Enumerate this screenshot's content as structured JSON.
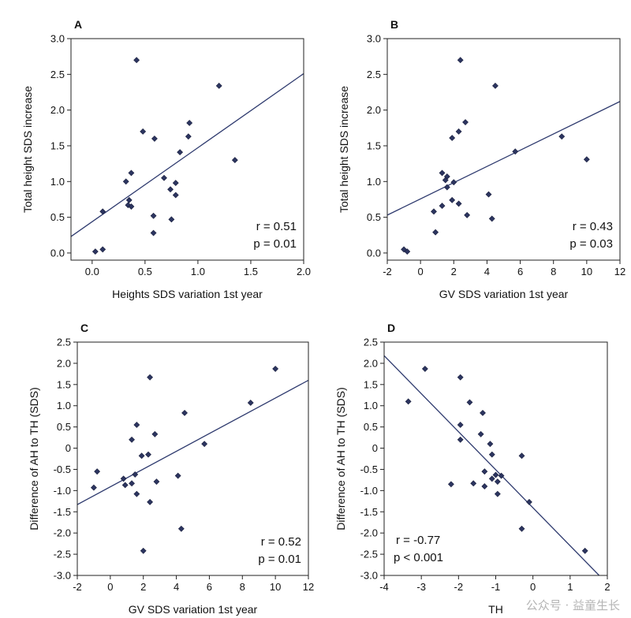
{
  "chart_data": [
    {
      "panel": "A",
      "type": "scatter",
      "xlabel": "Heights SDS variation 1st year",
      "ylabel": "Total height SDS increase",
      "xlim": [
        -0.2,
        2.0
      ],
      "ylim": [
        -0.1,
        3.0
      ],
      "xticks": [
        0.0,
        0.5,
        1.0,
        1.5,
        2.0
      ],
      "xtick_labels": [
        "0.0",
        "0.5",
        "1.0",
        "1.5",
        "2.0"
      ],
      "yticks": [
        0.0,
        0.5,
        1.0,
        1.5,
        2.0,
        2.5,
        3.0
      ],
      "ytick_labels": [
        "0.0",
        "0.5",
        "1.0",
        "1.5",
        "2.0",
        "2.5",
        "3.0"
      ],
      "points": [
        [
          0.42,
          2.7
        ],
        [
          1.2,
          2.34
        ],
        [
          0.92,
          1.82
        ],
        [
          0.48,
          1.7
        ],
        [
          0.59,
          1.6
        ],
        [
          0.91,
          1.63
        ],
        [
          0.83,
          1.41
        ],
        [
          1.35,
          1.3
        ],
        [
          0.37,
          1.12
        ],
        [
          0.68,
          1.05
        ],
        [
          0.32,
          1.0
        ],
        [
          0.79,
          0.98
        ],
        [
          0.74,
          0.89
        ],
        [
          0.79,
          0.81
        ],
        [
          0.35,
          0.74
        ],
        [
          0.34,
          0.67
        ],
        [
          0.37,
          0.65
        ],
        [
          0.1,
          0.58
        ],
        [
          0.58,
          0.52
        ],
        [
          0.75,
          0.47
        ],
        [
          0.58,
          0.28
        ],
        [
          0.1,
          0.05
        ],
        [
          0.03,
          0.02
        ]
      ],
      "fit_line": [
        [
          -0.2,
          0.23
        ],
        [
          2.0,
          2.51
        ]
      ],
      "annotations": [
        "r = 0.51",
        "p = 0.01"
      ]
    },
    {
      "panel": "B",
      "type": "scatter",
      "xlabel": "GV SDS variation 1st year",
      "ylabel": "Total height SDS increase",
      "xlim": [
        -2,
        12
      ],
      "ylim": [
        -0.1,
        3.0
      ],
      "xticks": [
        -2,
        0,
        2,
        4,
        6,
        8,
        10,
        12
      ],
      "xtick_labels": [
        "-2",
        "0",
        "2",
        "4",
        "6",
        "8",
        "10",
        "12"
      ],
      "yticks": [
        0.0,
        0.5,
        1.0,
        1.5,
        2.0,
        2.5,
        3.0
      ],
      "ytick_labels": [
        "0.0",
        "0.5",
        "1.0",
        "1.5",
        "2.0",
        "2.5",
        "3.0"
      ],
      "points": [
        [
          2.4,
          2.7
        ],
        [
          4.5,
          2.34
        ],
        [
          2.7,
          1.83
        ],
        [
          2.3,
          1.7
        ],
        [
          1.9,
          1.61
        ],
        [
          8.5,
          1.63
        ],
        [
          5.7,
          1.42
        ],
        [
          10.0,
          1.31
        ],
        [
          1.3,
          1.12
        ],
        [
          1.6,
          1.07
        ],
        [
          1.5,
          1.02
        ],
        [
          2.0,
          0.99
        ],
        [
          1.6,
          0.92
        ],
        [
          4.1,
          0.82
        ],
        [
          1.9,
          0.74
        ],
        [
          2.3,
          0.69
        ],
        [
          1.3,
          0.66
        ],
        [
          0.8,
          0.58
        ],
        [
          2.8,
          0.53
        ],
        [
          4.3,
          0.48
        ],
        [
          0.9,
          0.29
        ],
        [
          -1.0,
          0.05
        ],
        [
          -0.8,
          0.02
        ]
      ],
      "fit_line": [
        [
          -2,
          0.53
        ],
        [
          12,
          2.12
        ]
      ],
      "annotations": [
        "r = 0.43",
        "p = 0.03"
      ]
    },
    {
      "panel": "C",
      "type": "scatter",
      "xlabel": "GV SDS variation 1st year",
      "ylabel": "Difference of AH to TH (SDS)",
      "xlim": [
        -2,
        12
      ],
      "ylim": [
        -3.0,
        2.5
      ],
      "xticks": [
        -2,
        0,
        2,
        4,
        6,
        8,
        10,
        12
      ],
      "xtick_labels": [
        "-2",
        "0",
        "2",
        "4",
        "6",
        "8",
        "10",
        "12"
      ],
      "yticks": [
        -3.0,
        -2.5,
        -2.0,
        -1.5,
        -1.0,
        -0.5,
        0.0,
        0.5,
        1.0,
        1.5,
        2.0,
        2.5
      ],
      "ytick_labels": [
        "-3.0",
        "-2.5",
        "-2.0",
        "-1.5",
        "-1.0",
        "-0.5",
        "0",
        "0.5",
        "1.0",
        "1.5",
        "2.0",
        "2.5"
      ],
      "points": [
        [
          10.0,
          1.87
        ],
        [
          2.4,
          1.67
        ],
        [
          8.5,
          1.07
        ],
        [
          4.5,
          0.83
        ],
        [
          1.6,
          0.55
        ],
        [
          2.7,
          0.33
        ],
        [
          1.3,
          0.2
        ],
        [
          5.7,
          0.1
        ],
        [
          2.3,
          -0.15
        ],
        [
          1.9,
          -0.18
        ],
        [
          -0.8,
          -0.55
        ],
        [
          1.5,
          -0.62
        ],
        [
          4.1,
          -0.65
        ],
        [
          0.8,
          -0.72
        ],
        [
          2.8,
          -0.79
        ],
        [
          1.3,
          -0.83
        ],
        [
          0.9,
          -0.87
        ],
        [
          -1.0,
          -0.93
        ],
        [
          1.6,
          -1.08
        ],
        [
          2.4,
          -1.27
        ],
        [
          4.3,
          -1.9
        ],
        [
          2.0,
          -2.42
        ]
      ],
      "fit_line": [
        [
          -2,
          -1.33
        ],
        [
          12,
          1.6
        ]
      ],
      "annotations": [
        "r = 0.52",
        "p = 0.01"
      ]
    },
    {
      "panel": "D",
      "type": "scatter",
      "xlabel": "TH",
      "ylabel": "Difference of AH to TH (SDS)",
      "xlim": [
        -4,
        2
      ],
      "ylim": [
        -3.0,
        2.5
      ],
      "xticks": [
        -4,
        -3,
        -2,
        -1,
        0,
        1,
        2
      ],
      "xtick_labels": [
        "-4",
        "-3",
        "-2",
        "-1",
        "0",
        "1",
        "2"
      ],
      "yticks": [
        -3.0,
        -2.5,
        -2.0,
        -1.5,
        -1.0,
        -0.5,
        0.0,
        0.5,
        1.0,
        1.5,
        2.0,
        2.5
      ],
      "ytick_labels": [
        "-3.0",
        "-2.5",
        "-2.0",
        "-1.5",
        "-1.0",
        "-0.5",
        "0",
        "0.5",
        "1.0",
        "1.5",
        "2.0",
        "2.5"
      ],
      "points": [
        [
          -2.9,
          1.87
        ],
        [
          -1.95,
          1.67
        ],
        [
          -3.35,
          1.1
        ],
        [
          -1.7,
          1.08
        ],
        [
          -1.35,
          0.83
        ],
        [
          -1.95,
          0.55
        ],
        [
          -1.4,
          0.33
        ],
        [
          -1.95,
          0.2
        ],
        [
          -1.15,
          0.1
        ],
        [
          -1.1,
          -0.15
        ],
        [
          -0.3,
          -0.18
        ],
        [
          -1.3,
          -0.55
        ],
        [
          -1.0,
          -0.63
        ],
        [
          -0.85,
          -0.65
        ],
        [
          -1.1,
          -0.72
        ],
        [
          -0.95,
          -0.79
        ],
        [
          -1.6,
          -0.83
        ],
        [
          -2.2,
          -0.85
        ],
        [
          -1.3,
          -0.9
        ],
        [
          -0.95,
          -1.08
        ],
        [
          -0.1,
          -1.27
        ],
        [
          -0.3,
          -1.9
        ],
        [
          1.4,
          -2.42
        ]
      ],
      "fit_line": [
        [
          -4,
          2.18
        ],
        [
          1.78,
          -3.0
        ]
      ],
      "annotations": [
        "r = -0.77",
        "p < 0.001"
      ]
    }
  ],
  "watermark": "公众号 · 益童生长"
}
